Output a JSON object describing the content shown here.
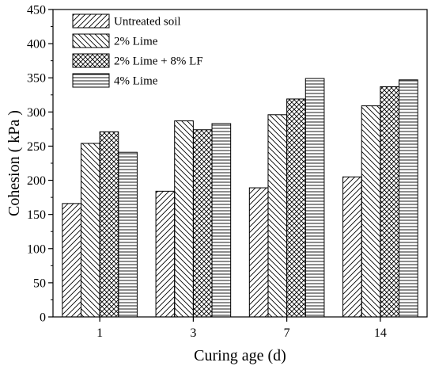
{
  "chart_data": {
    "type": "bar",
    "title": "",
    "xlabel": "Curing age (d)",
    "ylabel": "Cohesion ( kPa )",
    "categories": [
      "1",
      "3",
      "7",
      "14"
    ],
    "ylim": [
      0,
      450
    ],
    "yticks": [
      0,
      50,
      100,
      150,
      200,
      250,
      300,
      350,
      400,
      450
    ],
    "grid": false,
    "legend_position": "top-left",
    "series": [
      {
        "name": "Untreated soil",
        "pattern": "diag-up",
        "values": [
          166,
          184,
          189,
          205
        ]
      },
      {
        "name": "2% Lime",
        "pattern": "diag-down",
        "values": [
          254,
          287,
          296,
          309
        ]
      },
      {
        "name": "2% Lime + 8% LF",
        "pattern": "crosshatch",
        "values": [
          271,
          274,
          319,
          337
        ]
      },
      {
        "name": "4% Lime",
        "pattern": "horizontal",
        "values": [
          241,
          283,
          349,
          347
        ]
      }
    ],
    "colors": {
      "line": "#000000",
      "fill": "#ffffff"
    }
  }
}
